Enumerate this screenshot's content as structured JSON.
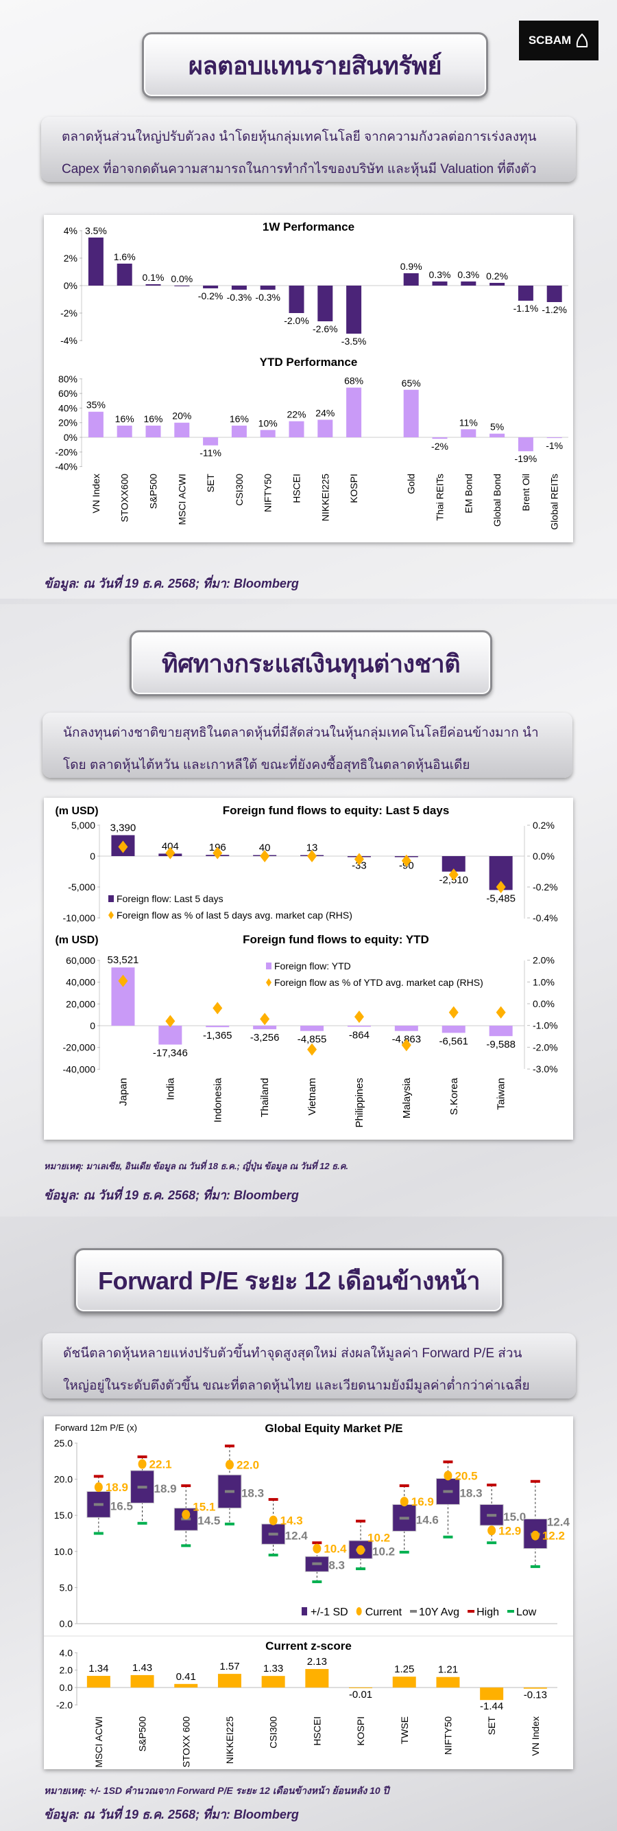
{
  "logo": {
    "text": "SCBAM",
    "icon": "scb-shell-icon"
  },
  "section1": {
    "title": "ผลตอบแทนรายสินทรัพย์",
    "desc": [
      "ตลาดหุ้นส่วนใหญ่ปรับตัวลง นำโดยหุ้นกลุ่มเทคโนโลยี จากความกังวลต่อการเร่งลงทุน",
      "Capex ที่อาจกดดันความสามารถในการทำกำไรของบริษัท และหุ้นมี Valuation ที่ตึงตัว"
    ],
    "source": "ข้อมูล: ณ วันที่ 19 ธ.ค. 2568; ที่มา: Bloomberg"
  },
  "section2": {
    "title": "ทิศทางกระแสเงินทุนต่างชาติ",
    "desc": [
      "นักลงทุนต่างชาติขายสุทธิในตลาดหุ้นที่มีสัดส่วนในหุ้นกลุ่มเทคโนโลยีค่อนข้างมาก นำ",
      "โดย ตลาดหุ้นไต้หวัน และเกาหลีใต้ ขณะที่ยังคงซื้อสุทธิในตลาดหุ้นอินเดีย"
    ],
    "note": "หมายเหตุ: มาเลเซีย, อินเดีย ข้อมูล ณ วันที่ 18 ธ.ค.; ญี่ปุ่น ข้อมูล ณ วันที่ 12 ธ.ค.",
    "source": "ข้อมูล: ณ วันที่ 19 ธ.ค. 2568; ที่มา: Bloomberg"
  },
  "section3": {
    "title": "Forward P/E ระยะ 12 เดือนข้างหน้า",
    "desc": [
      "ดัชนีตลาดหุ้นหลายแห่งปรับตัวขึ้นทำจุดสูงสุดใหม่ ส่งผลให้มูลค่า Forward P/E ส่วน",
      "ใหญ่อยู่ในระดับตึงตัวขึ้น ขณะที่ตลาดหุ้นไทย และเวียดนามยังมีมูลค่าต่ำกว่าค่าเฉลี่ย"
    ],
    "note": "หมายเหตุ: +/- 1SD คำนวณจาก Forward P/E ระยะ 12 เดือนข้างหน้า ย้อนหลัง 10 ปี",
    "source": "ข้อมูล: ณ วันที่ 19 ธ.ค. 2568; ที่มา: Bloomberg"
  },
  "colors": {
    "dark_purple": "#4b2478",
    "light_purple": "#c99af7",
    "orange": "#ffb000",
    "grey": "#808080",
    "red": "#c00000",
    "green": "#00b050",
    "text": "#3a1f5e"
  },
  "chart_data": [
    {
      "id": "perf_1w",
      "type": "bar",
      "title": "1W Performance",
      "categories": [
        "VN Index",
        "STOXX600",
        "S&P500",
        "MSCI ACWI",
        "SET",
        "CSI300",
        "NIFTY50",
        "HSCEI",
        "NIKKEI225",
        "KOSPI",
        "Gold",
        "Thai REITs",
        "EM Bond",
        "Global Bond",
        "Brent Oil",
        "Global REITs"
      ],
      "values": [
        3.5,
        1.6,
        0.1,
        0.0,
        -0.2,
        -0.3,
        -0.3,
        -2.0,
        -2.6,
        -3.5,
        0.9,
        0.3,
        0.3,
        0.2,
        -1.1,
        -1.2
      ],
      "labels": [
        "3.5%",
        "1.6%",
        "0.1%",
        "0.0%",
        "-0.2%",
        "-0.3%",
        "-0.3%",
        "-2.0%",
        "-2.6%",
        "-3.5%",
        "0.9%",
        "0.3%",
        "0.3%",
        "0.2%",
        "-1.1%",
        "-1.2%"
      ],
      "yticks": [
        "4%",
        "2%",
        "0%",
        "-2%",
        "-4%"
      ],
      "ylim": [
        -4,
        4
      ],
      "color": "#4b2478"
    },
    {
      "id": "perf_ytd",
      "type": "bar",
      "title": "YTD Performance",
      "categories": [
        "VN Index",
        "STOXX600",
        "S&P500",
        "MSCI ACWI",
        "SET",
        "CSI300",
        "NIFTY50",
        "HSCEI",
        "NIKKEI225",
        "KOSPI",
        "Gold",
        "Thai REITs",
        "EM Bond",
        "Global Bond",
        "Brent Oil",
        "Global REITs"
      ],
      "values": [
        35,
        16,
        16,
        20,
        -11,
        16,
        10,
        22,
        24,
        68,
        65,
        -2,
        11,
        5,
        -19,
        -1
      ],
      "labels": [
        "35%",
        "16%",
        "16%",
        "20%",
        "-11%",
        "16%",
        "10%",
        "22%",
        "24%",
        "68%",
        "65%",
        "-2%",
        "11%",
        "5%",
        "-19%",
        "-1%"
      ],
      "yticks": [
        "80%",
        "60%",
        "40%",
        "20%",
        "0%",
        "-20%",
        "-40%"
      ],
      "ylim": [
        -40,
        80
      ],
      "color": "#c99af7"
    },
    {
      "id": "flows_5d",
      "type": "bar+scatter",
      "title": "Foreign fund flows to equity: Last 5 days",
      "ylabel": "(m USD)",
      "categories": [
        "Japan",
        "India",
        "Indonesia",
        "Thailand",
        "Vietnam",
        "Philippines",
        "Malaysia",
        "S.Korea",
        "Taiwan"
      ],
      "series": [
        {
          "name": "Foreign flow: Last 5 days",
          "values": [
            3390,
            404,
            196,
            40,
            13,
            -33,
            -90,
            -2510,
            -5485
          ],
          "labels": [
            "3,390",
            "404",
            "196",
            "40",
            "13",
            "-33",
            "-90",
            "-2,510",
            "-5,485"
          ]
        },
        {
          "name": "Foreign flow as % of last 5 days avg. market cap (RHS)",
          "axis": "right",
          "values": [
            0.06,
            0.02,
            0.02,
            0.0,
            0.0,
            -0.02,
            -0.03,
            -0.12,
            -0.2
          ]
        }
      ],
      "yticks": [
        "5,000",
        "0",
        "-5,000",
        "-10,000"
      ],
      "ylim": [
        -10000,
        5000
      ],
      "y2ticks": [
        "0.2%",
        "0.0%",
        "-0.2%",
        "-0.4%"
      ],
      "y2lim": [
        -0.4,
        0.2
      ]
    },
    {
      "id": "flows_ytd",
      "type": "bar+scatter",
      "title": "Foreign fund flows to equity: YTD",
      "ylabel": "(m USD)",
      "categories": [
        "Japan",
        "India",
        "Indonesia",
        "Thailand",
        "Vietnam",
        "Philippines",
        "Malaysia",
        "S.Korea",
        "Taiwan"
      ],
      "series": [
        {
          "name": "Foreign flow: YTD",
          "values": [
            53521,
            -17346,
            -1365,
            -3256,
            -4855,
            -864,
            -4863,
            -6561,
            -9588
          ],
          "labels": [
            "53,521",
            "-17,346",
            "-1,365",
            "-3,256",
            "-4,855",
            "-864",
            "-4,863",
            "-6,561",
            "-9,588"
          ]
        },
        {
          "name": "Foreign flow as % of YTD avg. market cap (RHS)",
          "axis": "right",
          "values": [
            1.05,
            -0.8,
            -0.2,
            -0.7,
            -2.1,
            -0.6,
            -1.9,
            -0.4,
            -0.4
          ]
        }
      ],
      "yticks": [
        "60,000",
        "40,000",
        "20,000",
        "0",
        "-20,000",
        "-40,000"
      ],
      "ylim": [
        -40000,
        60000
      ],
      "y2ticks": [
        "2.0%",
        "1.0%",
        "0.0%",
        "-1.0%",
        "-2.0%",
        "-3.0%"
      ],
      "y2lim": [
        -3,
        2
      ]
    },
    {
      "id": "pe",
      "type": "box",
      "title": "Global Equity Market P/E",
      "ylabel": "Forward 12m P/E (x)",
      "categories": [
        "MSCI ACWI",
        "S&P500",
        "STOXX 600",
        "NIKKEI225",
        "CSI300",
        "HSCEI",
        "KOSPI",
        "TWSE",
        "NIFTY50",
        "SET",
        "VN Index"
      ],
      "sd_high": [
        18.3,
        21.2,
        16.0,
        20.6,
        13.8,
        9.3,
        11.5,
        16.5,
        20.1,
        16.5,
        14.5
      ],
      "sd_low": [
        14.7,
        16.7,
        12.9,
        16.0,
        11.0,
        7.2,
        9.0,
        12.8,
        16.5,
        13.6,
        10.4
      ],
      "current": [
        18.9,
        22.1,
        15.1,
        22.0,
        14.3,
        10.4,
        10.2,
        16.9,
        20.5,
        12.9,
        12.2
      ],
      "avg10y": [
        16.5,
        18.9,
        14.5,
        18.3,
        12.4,
        8.3,
        10.2,
        14.6,
        18.3,
        15.0,
        12.4
      ],
      "high": [
        20.4,
        23.1,
        19.1,
        24.6,
        17.2,
        11.2,
        14.2,
        19.1,
        22.4,
        19.2,
        19.7
      ],
      "low": [
        12.5,
        13.9,
        10.8,
        13.8,
        9.5,
        5.8,
        7.6,
        9.9,
        12.0,
        11.2,
        7.9
      ],
      "legend": [
        "+/-1 SD",
        "Current",
        "10Y Avg",
        "High",
        "Low"
      ],
      "yticks": [
        "25.0",
        "20.0",
        "15.0",
        "10.0",
        "5.0",
        "0.0"
      ],
      "ylim": [
        0,
        25
      ]
    },
    {
      "id": "zscore",
      "type": "bar",
      "title": "Current z-score",
      "categories": [
        "MSCI ACWI",
        "S&P500",
        "STOXX 600",
        "NIKKEI225",
        "CSI300",
        "HSCEI",
        "KOSPI",
        "TWSE",
        "NIFTY50",
        "SET",
        "VN Index"
      ],
      "values": [
        1.34,
        1.43,
        0.41,
        1.57,
        1.33,
        2.13,
        -0.01,
        1.25,
        1.21,
        -1.44,
        -0.13
      ],
      "labels": [
        "1.34",
        "1.43",
        "0.41",
        "1.57",
        "1.33",
        "2.13",
        "-0.01",
        "1.25",
        "1.21",
        "-1.44",
        "-0.13"
      ],
      "yticks": [
        "4.0",
        "2.0",
        "0.0",
        "-2.0"
      ],
      "ylim": [
        -2,
        4
      ],
      "color": "#ffb000"
    }
  ]
}
